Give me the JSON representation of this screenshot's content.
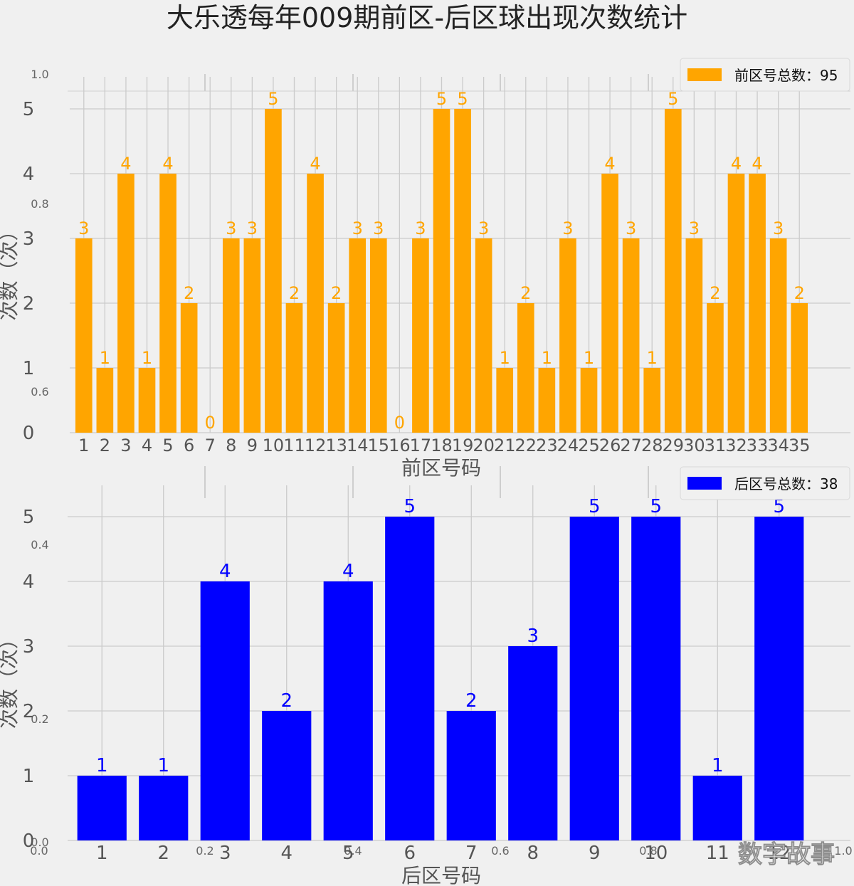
{
  "chart_data": [
    {
      "type": "bar",
      "title": "大乐透每年009期前区-后区球出现次数统计",
      "xlabel": "前区号码",
      "ylabel": "次数（次）",
      "legend": {
        "label": "前区号总数：95",
        "placement": "top-right"
      },
      "categories": [
        "1",
        "2",
        "3",
        "4",
        "5",
        "6",
        "7",
        "8",
        "9",
        "10",
        "11",
        "12",
        "13",
        "14",
        "15",
        "16",
        "17",
        "18",
        "19",
        "20",
        "21",
        "22",
        "23",
        "24",
        "25",
        "26",
        "27",
        "28",
        "29",
        "30",
        "31",
        "32",
        "33",
        "34",
        "35"
      ],
      "values": [
        3,
        1,
        4,
        1,
        4,
        2,
        0,
        3,
        3,
        5,
        2,
        4,
        2,
        3,
        3,
        0,
        3,
        5,
        5,
        3,
        1,
        2,
        1,
        3,
        1,
        4,
        3,
        1,
        5,
        3,
        2,
        4,
        4,
        3,
        2
      ],
      "yticks": [
        0,
        1,
        2,
        3,
        4,
        5
      ],
      "ylim": [
        0,
        5.5
      ],
      "bar_color": "#FFA500",
      "label_color": "#FFA500",
      "grid": true
    },
    {
      "type": "bar",
      "xlabel": "后区号码",
      "ylabel": "次数（次）",
      "legend": {
        "label": "后区号总数：38",
        "placement": "top-right"
      },
      "categories": [
        "1",
        "2",
        "3",
        "4",
        "5",
        "6",
        "7",
        "8",
        "9",
        "10",
        "11",
        "12"
      ],
      "values": [
        1,
        1,
        4,
        2,
        4,
        5,
        2,
        3,
        5,
        5,
        1,
        5
      ],
      "yticks": [
        0,
        1,
        2,
        3,
        4,
        5
      ],
      "ylim": [
        0,
        5.5
      ],
      "bar_color": "#0000FF",
      "label_color": "#0000FF",
      "grid": true
    }
  ],
  "ghost_axis": {
    "yticks": [
      "0.0",
      "0.2",
      "0.4",
      "0.6",
      "0.8",
      "1.0"
    ],
    "xticks": [
      "0.0",
      "0.2",
      "0.4",
      "0.6",
      "0.8",
      "1.0"
    ]
  },
  "watermark": "数字故事",
  "colors": {
    "background": "#f0f0f0",
    "grid": "#cbcbcb",
    "text": "#555555",
    "title": "#222222"
  }
}
